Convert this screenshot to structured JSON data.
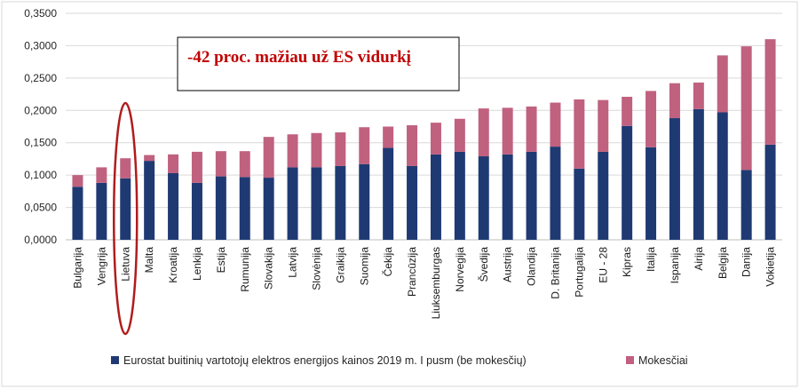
{
  "chart_data": {
    "type": "bar",
    "stacked": true,
    "categories": [
      "Bulgarija",
      "Vengrija",
      "Lietuva",
      "Malta",
      "Kroatija",
      "Lenkija",
      "Estija",
      "Rumunija",
      "Slovakija",
      "Latvija",
      "Slovėnija",
      "Graikija",
      "Suomija",
      "Čekija",
      "Prancūzija",
      "Liuksemburgas",
      "Norvegija",
      "Švedija",
      "Austrija",
      "Olandija",
      "D. Britanija",
      "Portugalija",
      "EU - 28",
      "Kipras",
      "Italija",
      "Ispanija",
      "Airija",
      "Belgija",
      "Danija",
      "Vokietija"
    ],
    "series": [
      {
        "name": "Eurostat buitinių vartotojų elektros energijos kainos 2019 m. I pusm (be mokesčių)",
        "color": "#1f3a73",
        "values": [
          0.082,
          0.088,
          0.095,
          0.122,
          0.103,
          0.088,
          0.098,
          0.097,
          0.096,
          0.112,
          0.112,
          0.114,
          0.117,
          0.142,
          0.114,
          0.132,
          0.136,
          0.129,
          0.132,
          0.136,
          0.144,
          0.11,
          0.136,
          0.176,
          0.143,
          0.188,
          0.202,
          0.197,
          0.108,
          0.147
        ]
      },
      {
        "name": "Mokesčiai",
        "color": "#c0617f",
        "values": [
          0.018,
          0.024,
          0.031,
          0.009,
          0.029,
          0.048,
          0.039,
          0.04,
          0.063,
          0.051,
          0.053,
          0.052,
          0.057,
          0.033,
          0.063,
          0.049,
          0.051,
          0.074,
          0.072,
          0.07,
          0.068,
          0.107,
          0.08,
          0.045,
          0.087,
          0.054,
          0.041,
          0.088,
          0.191,
          0.163
        ]
      }
    ],
    "yticks": [
      "0,0000",
      "0,0500",
      "0,1000",
      "0,1500",
      "0,2000",
      "0,2500",
      "0,3000",
      "0,3500"
    ],
    "ylim": [
      0,
      0.35
    ],
    "grid": true,
    "legend_position": "bottom",
    "highlight_category": "Lietuva",
    "highlight_color": "#b01c1c",
    "annotation": "-42 proc. mažiau už ES vidurkį"
  }
}
